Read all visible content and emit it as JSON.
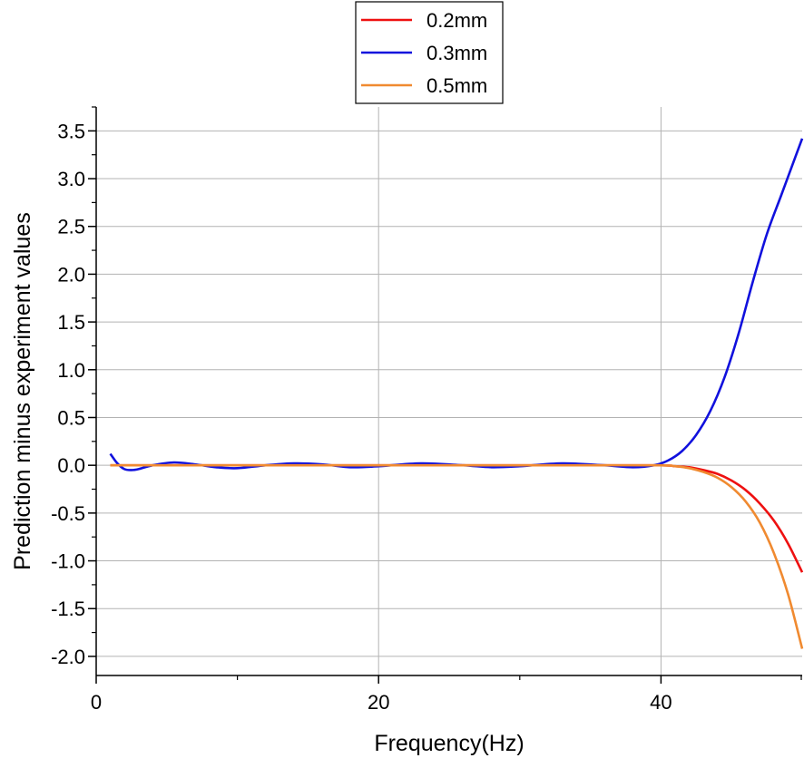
{
  "chart_data": {
    "type": "line",
    "title": "",
    "xlabel": "Frequency(Hz)",
    "ylabel": "Prediction minus experiment values",
    "xlim": [
      0,
      50
    ],
    "ylim": [
      -2.2,
      3.75
    ],
    "x_ticks": [
      0,
      20,
      40
    ],
    "x_tick_labels": [
      "0",
      "20",
      "40"
    ],
    "x_minor_ticks": [
      10,
      30,
      50
    ],
    "y_ticks": [
      -2.0,
      -1.5,
      -1.0,
      -0.5,
      0.0,
      0.5,
      1.0,
      1.5,
      2.0,
      2.5,
      3.0,
      3.5
    ],
    "y_tick_labels": [
      "-2.0",
      "-1.5",
      "-1.0",
      "-0.5",
      "0.0",
      "0.5",
      "1.0",
      "1.5",
      "2.0",
      "2.5",
      "3.0",
      "3.5"
    ],
    "grid": true,
    "legend_position": "top-center",
    "series": [
      {
        "name": "0.2mm",
        "color": "#ee1111",
        "x": [
          1,
          5,
          10,
          15,
          20,
          25,
          30,
          35,
          40,
          41,
          42,
          43,
          44,
          45,
          46,
          47,
          48,
          49,
          50
        ],
        "y": [
          0.0,
          0.0,
          0.0,
          0.0,
          0.0,
          0.0,
          0.0,
          0.0,
          0.0,
          -0.01,
          -0.02,
          -0.05,
          -0.09,
          -0.16,
          -0.26,
          -0.4,
          -0.58,
          -0.82,
          -1.12
        ]
      },
      {
        "name": "0.3mm",
        "color": "#1111dd",
        "x": [
          1,
          1.5,
          2,
          2.5,
          3,
          4,
          5.5,
          7,
          8.5,
          10,
          12,
          14,
          16,
          18,
          20,
          23,
          26,
          28,
          30,
          33,
          36,
          38,
          39.5,
          40.5,
          41.5,
          42.5,
          43.5,
          44.5,
          45.5,
          46.5,
          47.5,
          48.5,
          49.5,
          50
        ],
        "y": [
          0.12,
          0.02,
          -0.04,
          -0.05,
          -0.04,
          0.0,
          0.03,
          0.01,
          -0.02,
          -0.03,
          0.0,
          0.02,
          0.01,
          -0.02,
          -0.01,
          0.02,
          0.0,
          -0.02,
          -0.01,
          0.02,
          0.0,
          -0.02,
          0.0,
          0.05,
          0.15,
          0.32,
          0.57,
          0.92,
          1.38,
          1.92,
          2.42,
          2.82,
          3.22,
          3.42
        ]
      },
      {
        "name": "0.5mm",
        "color": "#f08a30",
        "x": [
          1,
          5,
          10,
          15,
          20,
          25,
          30,
          35,
          40,
          41,
          42,
          43,
          44,
          45,
          46,
          47,
          48,
          49,
          50
        ],
        "y": [
          0.0,
          0.0,
          0.0,
          0.0,
          0.0,
          0.0,
          0.0,
          0.0,
          0.0,
          -0.01,
          -0.03,
          -0.07,
          -0.13,
          -0.23,
          -0.38,
          -0.6,
          -0.92,
          -1.35,
          -1.92
        ]
      }
    ]
  }
}
